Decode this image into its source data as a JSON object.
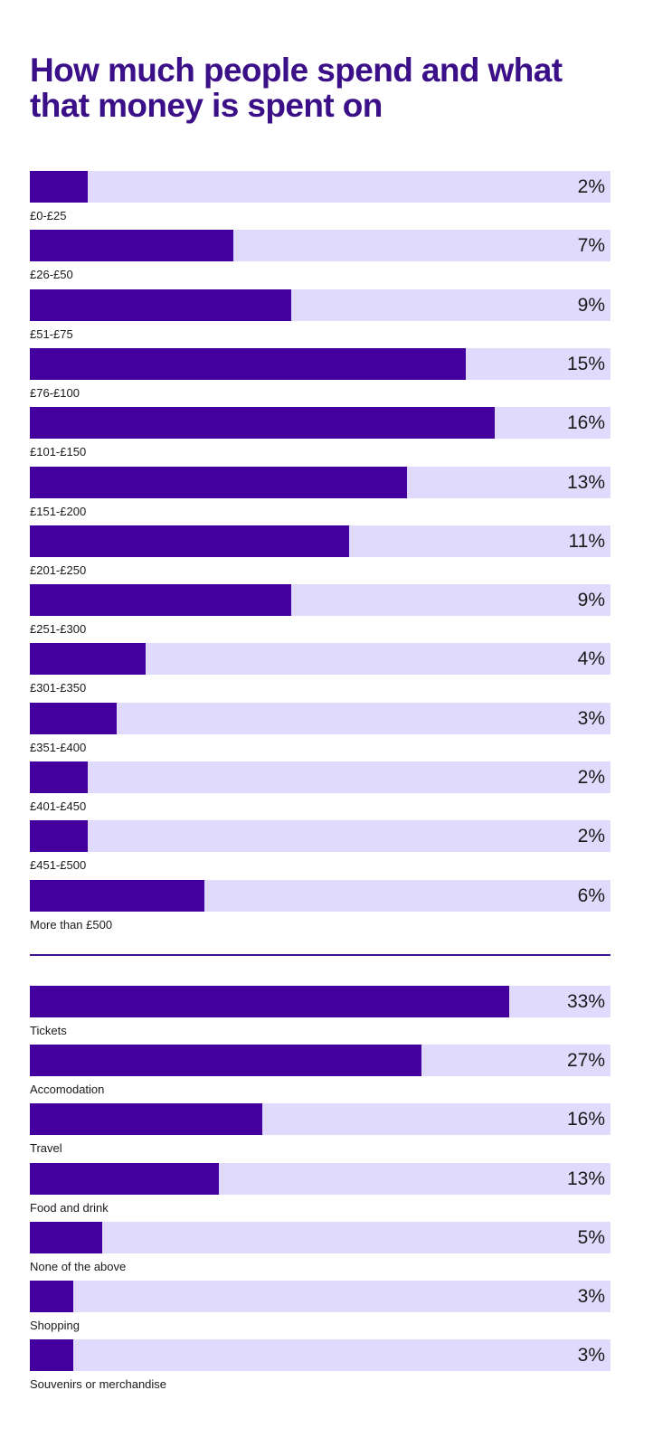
{
  "title": "How much people spend and what that money is spent on",
  "colors": {
    "title": "#3a0f87",
    "bar_fill": "#44009f",
    "bar_track": "#e0dafd",
    "divider": "#3d1590"
  },
  "chart_data": [
    {
      "type": "bar",
      "orientation": "horizontal",
      "title": "",
      "xlim": [
        0,
        20
      ],
      "grid": false,
      "categories": [
        "£0-£25",
        "£26-£50",
        "£51-£75",
        "£76-£100",
        "£101-£150",
        "£151-£200",
        "£201-£250",
        "£251-£300",
        "£301-£350",
        "£351-£400",
        "£401-£450",
        "£451-£500",
        "More than £500"
      ],
      "values": [
        2,
        7,
        9,
        15,
        16,
        13,
        11,
        9,
        4,
        3,
        2,
        2,
        6
      ],
      "value_labels": [
        "2%",
        "7%",
        "9%",
        "15%",
        "16%",
        "13%",
        "11%",
        "9%",
        "4%",
        "3%",
        "2%",
        "2%",
        "6%"
      ]
    },
    {
      "type": "bar",
      "orientation": "horizontal",
      "title": "",
      "xlim": [
        0,
        40
      ],
      "grid": false,
      "categories": [
        "Tickets",
        "Accomodation",
        "Travel",
        "Food and drink",
        "None of the above",
        "Shopping",
        "Souvenirs or merchandise"
      ],
      "values": [
        33,
        27,
        16,
        13,
        5,
        3,
        3
      ],
      "value_labels": [
        "33%",
        "27%",
        "16%",
        "13%",
        "5%",
        "3%",
        "3%"
      ]
    }
  ]
}
